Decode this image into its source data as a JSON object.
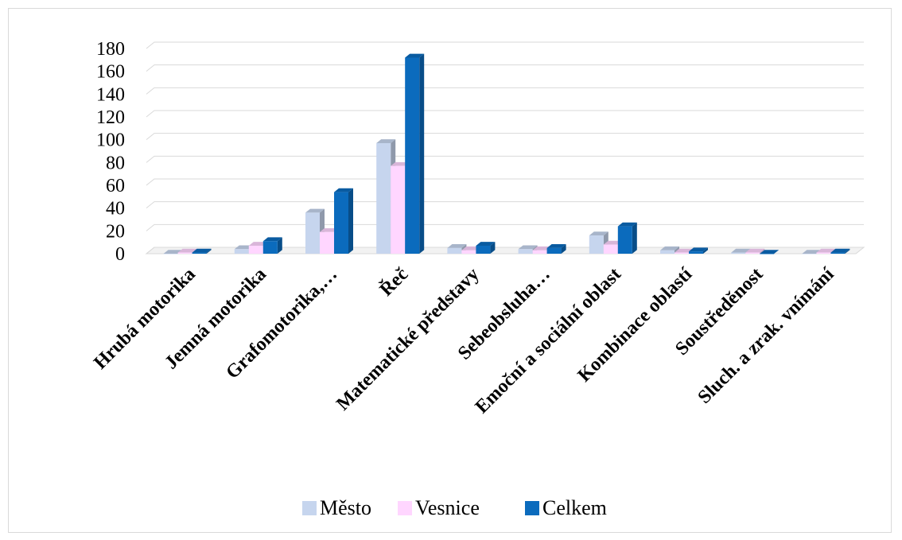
{
  "chart_data": {
    "type": "bar",
    "categories": [
      "Hrubá motorika",
      "Jemná motorika",
      "Grafomotorika,…",
      "Řeč",
      "Matematické představy",
      "Sebeobsluha…",
      "Emoční a sociální oblast",
      "Kombinace oblastí",
      "Soustředěnost",
      "Sluch. a zrak. vnímání"
    ],
    "series": [
      {
        "name": "Město",
        "color": "#c6d5ee",
        "values": [
          0,
          4,
          36,
          97,
          5,
          4,
          16,
          3,
          1,
          0
        ]
      },
      {
        "name": "Vesnice",
        "color": "#ffd6ff",
        "values": [
          1,
          7,
          19,
          77,
          3,
          3,
          8,
          1,
          1,
          1
        ]
      },
      {
        "name": "Celkem",
        "color": "#0b6bbd",
        "values": [
          1,
          11,
          54,
          172,
          7,
          5,
          24,
          2,
          0,
          1
        ]
      }
    ],
    "ylim": [
      0,
      180
    ],
    "yticks": [
      0,
      20,
      40,
      60,
      80,
      100,
      120,
      140,
      160,
      180
    ],
    "ytick_labels": [
      "0",
      "20",
      "40",
      "60",
      "80",
      "100",
      "120",
      "140",
      "160",
      "180"
    ],
    "grid": true,
    "legend_position": "bottom",
    "title": "",
    "xlabel": "",
    "ylabel": ""
  }
}
